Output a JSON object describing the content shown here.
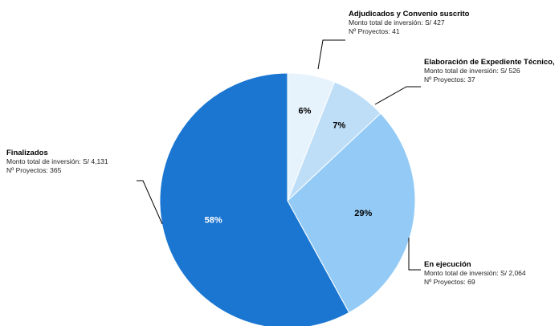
{
  "chart_data": {
    "type": "pie",
    "title": "",
    "slices": [
      {
        "name": "Adjudicados y Convenio suscrito",
        "percent": 6,
        "percent_label": "6%",
        "monto_label": "Monto total de inversión: S/ 427",
        "proyectos_label": "Nº Proyectos: 41",
        "color": "#E6F2FC",
        "label_color": "#000000"
      },
      {
        "name": "Elaboración de Expediente Técnico,",
        "percent": 7,
        "percent_label": "7%",
        "monto_label": "Monto total de inversión: S/ 526",
        "proyectos_label": "Nº Proyectos: 37",
        "color": "#BEDEF8",
        "label_color": "#000000"
      },
      {
        "name": "En ejecución",
        "percent": 29,
        "percent_label": "29%",
        "monto_label": "Monto total de inversión: S/ 2,064",
        "proyectos_label": "Nº Proyectos: 69",
        "color": "#94CBF6",
        "label_color": "#000000"
      },
      {
        "name": "Finalizados",
        "percent": 58,
        "percent_label": "58%",
        "monto_label": "Monto total de inversión: S/ 4,131",
        "proyectos_label": "Nº Proyectos: 365",
        "color": "#1B76D2",
        "label_color": "#FFFFFF"
      }
    ],
    "start_angle_deg": 0,
    "direction": "clockwise",
    "legend": "none",
    "annotations": "callout labels with leader lines"
  }
}
